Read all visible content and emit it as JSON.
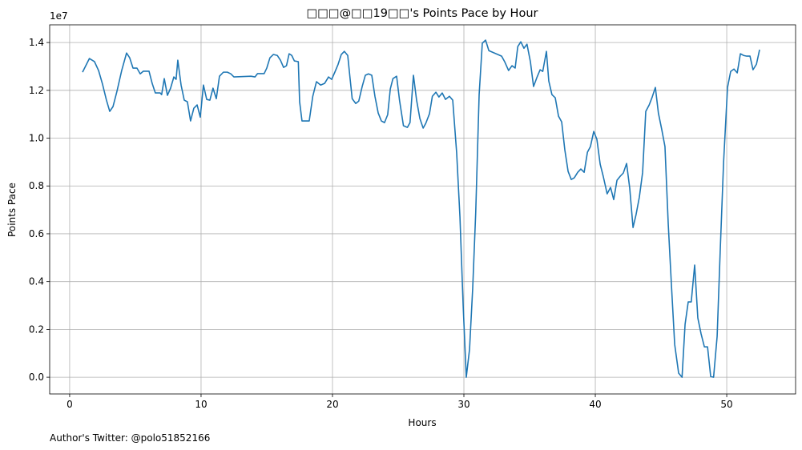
{
  "chart_data": {
    "type": "line",
    "title": "□□□@□□19□□'s Points Pace by Hour",
    "x_label": "Hours",
    "y_label": "Points Pace",
    "y_offset_label": "1e7",
    "footer": "Author's Twitter: @polo51852166",
    "grid": true,
    "xlim": [
      -1.52,
      55.24
    ],
    "ylim": [
      -0.07,
      1.474
    ],
    "xticks": [
      0,
      10,
      20,
      30,
      40,
      50
    ],
    "yticks": [
      {
        "value": 0,
        "label": "0.0"
      },
      0.2,
      0.4,
      0.6,
      0.8,
      {
        "value": 1,
        "label": "1.0"
      },
      1.2,
      1.4
    ],
    "x": [
      0.98,
      1.5,
      1.89,
      2.2,
      2.5,
      2.8,
      3.05,
      3.3,
      3.6,
      3.96,
      4.33,
      4.57,
      4.82,
      5.12,
      5.37,
      5.61,
      6.04,
      6.28,
      6.52,
      6.89,
      7.0,
      7.2,
      7.44,
      7.68,
      7.93,
      8.1,
      8.23,
      8.48,
      8.72,
      8.96,
      9.2,
      9.45,
      9.7,
      9.94,
      10.18,
      10.43,
      10.67,
      10.91,
      11.16,
      11.4,
      11.7,
      12.0,
      12.26,
      12.5,
      13.8,
      14.1,
      14.3,
      14.8,
      15.0,
      15.24,
      15.5,
      15.8,
      16.04,
      16.28,
      16.5,
      16.7,
      16.9,
      17.1,
      17.4,
      17.5,
      17.68,
      18.23,
      18.5,
      18.78,
      19.1,
      19.4,
      19.7,
      19.94,
      20.18,
      20.43,
      20.67,
      20.9,
      21.16,
      21.34,
      21.5,
      21.77,
      22.0,
      22.26,
      22.5,
      22.74,
      22.99,
      23.23,
      23.48,
      23.72,
      23.96,
      24.2,
      24.4,
      24.6,
      24.88,
      25.1,
      25.4,
      25.7,
      25.9,
      26.16,
      26.4,
      26.65,
      26.9,
      27.1,
      27.38,
      27.6,
      27.87,
      28.1,
      28.35,
      28.6,
      28.9,
      29.15,
      29.45,
      29.7,
      29.94,
      30.18,
      30.43,
      30.67,
      30.9,
      31.16,
      31.4,
      31.65,
      31.9,
      32.87,
      33.1,
      33.4,
      33.66,
      33.9,
      34.1,
      34.33,
      34.57,
      34.8,
      35.06,
      35.3,
      35.55,
      35.8,
      36.0,
      36.28,
      36.46,
      36.7,
      36.95,
      37.2,
      37.44,
      37.68,
      37.93,
      38.17,
      38.4,
      38.66,
      38.9,
      39.15,
      39.4,
      39.63,
      39.88,
      40.12,
      40.37,
      40.6,
      40.9,
      41.16,
      41.4,
      41.65,
      41.9,
      42.13,
      42.38,
      42.62,
      42.87,
      43.1,
      43.35,
      43.6,
      43.84,
      44.1,
      44.33,
      44.57,
      44.8,
      45.06,
      45.3,
      45.55,
      45.8,
      46.04,
      46.34,
      46.6,
      46.83,
      47.07,
      47.3,
      47.56,
      47.8,
      48.05,
      48.3,
      48.54,
      48.78,
      49.0,
      49.27,
      49.5,
      49.76,
      50.06,
      50.3,
      50.55,
      50.8,
      51.04,
      51.28,
      51.52,
      51.77,
      52.0,
      52.26,
      52.5
    ],
    "series": [
      {
        "name": "Points Pace",
        "color": "#1f77b4",
        "values": [
          1.276,
          1.333,
          1.32,
          1.283,
          1.226,
          1.159,
          1.112,
          1.132,
          1.196,
          1.283,
          1.356,
          1.336,
          1.293,
          1.293,
          1.269,
          1.28,
          1.28,
          1.229,
          1.189,
          1.189,
          1.182,
          1.249,
          1.179,
          1.209,
          1.256,
          1.246,
          1.326,
          1.222,
          1.159,
          1.152,
          1.072,
          1.125,
          1.139,
          1.088,
          1.222,
          1.162,
          1.159,
          1.209,
          1.165,
          1.259,
          1.276,
          1.276,
          1.269,
          1.256,
          1.259,
          1.256,
          1.27,
          1.27,
          1.293,
          1.336,
          1.35,
          1.346,
          1.326,
          1.296,
          1.303,
          1.353,
          1.346,
          1.323,
          1.32,
          1.152,
          1.072,
          1.072,
          1.175,
          1.236,
          1.222,
          1.229,
          1.256,
          1.246,
          1.276,
          1.309,
          1.35,
          1.363,
          1.346,
          1.249,
          1.165,
          1.145,
          1.155,
          1.216,
          1.263,
          1.269,
          1.263,
          1.175,
          1.105,
          1.072,
          1.065,
          1.098,
          1.206,
          1.249,
          1.259,
          1.159,
          1.052,
          1.045,
          1.065,
          1.263,
          1.159,
          1.082,
          1.042,
          1.062,
          1.102,
          1.175,
          1.192,
          1.172,
          1.189,
          1.162,
          1.175,
          1.159,
          0.938,
          0.67,
          0.305,
          0.0,
          0.117,
          0.372,
          0.69,
          1.182,
          1.397,
          1.41,
          1.366,
          1.343,
          1.32,
          1.283,
          1.303,
          1.293,
          1.383,
          1.403,
          1.376,
          1.393,
          1.32,
          1.216,
          1.253,
          1.286,
          1.279,
          1.363,
          1.239,
          1.182,
          1.169,
          1.092,
          1.068,
          0.951,
          0.861,
          0.827,
          0.834,
          0.857,
          0.871,
          0.857,
          0.941,
          0.965,
          1.028,
          0.995,
          0.891,
          0.841,
          0.767,
          0.794,
          0.743,
          0.824,
          0.841,
          0.854,
          0.894,
          0.79,
          0.626,
          0.68,
          0.753,
          0.857,
          1.112,
          1.139,
          1.172,
          1.212,
          1.105,
          1.035,
          0.965,
          0.64,
          0.378,
          0.137,
          0.017,
          0.0,
          0.221,
          0.315,
          0.315,
          0.469,
          0.248,
          0.181,
          0.127,
          0.127,
          0.003,
          0.0,
          0.171,
          0.522,
          0.898,
          1.212,
          1.279,
          1.289,
          1.273,
          1.353,
          1.346,
          1.343,
          1.343,
          1.286,
          1.309,
          1.37
        ]
      }
    ]
  }
}
